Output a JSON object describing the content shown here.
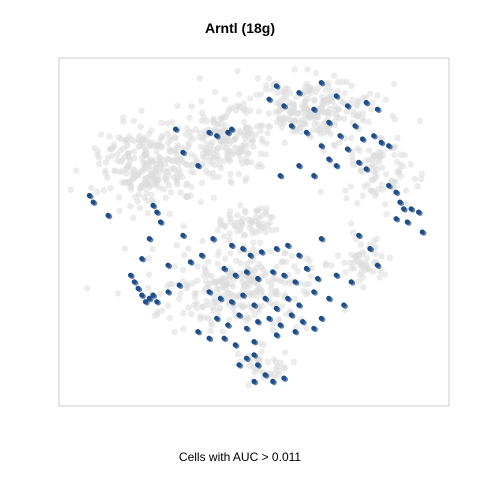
{
  "chart_data": {
    "type": "scatter",
    "title": "Arntl (18g)",
    "caption": "Cells with AUC > 0.011",
    "colors": {
      "background_cells": "#dcdcdc",
      "highlighted_cells": "#1f4e89",
      "frame": "#cccccc"
    },
    "grid": false,
    "legend": "none",
    "series": [
      {
        "name": "",
        "color": "#dcdcdc",
        "note_blob_regions": [
          {
            "cx": 0.22,
            "cy": 0.3,
            "rx": 0.15,
            "ry": 0.14,
            "n": 260
          },
          {
            "cx": 0.42,
            "cy": 0.22,
            "rx": 0.14,
            "ry": 0.12,
            "n": 180
          },
          {
            "cx": 0.66,
            "cy": 0.13,
            "rx": 0.2,
            "ry": 0.1,
            "n": 240
          },
          {
            "cx": 0.82,
            "cy": 0.32,
            "rx": 0.12,
            "ry": 0.12,
            "n": 90
          },
          {
            "cx": 0.48,
            "cy": 0.47,
            "rx": 0.08,
            "ry": 0.05,
            "n": 60
          },
          {
            "cx": 0.46,
            "cy": 0.66,
            "rx": 0.24,
            "ry": 0.14,
            "n": 280
          },
          {
            "cx": 0.8,
            "cy": 0.58,
            "rx": 0.07,
            "ry": 0.08,
            "n": 50
          },
          {
            "cx": 0.52,
            "cy": 0.9,
            "rx": 0.07,
            "ry": 0.06,
            "n": 40
          }
        ]
      },
      {
        "name": "",
        "color": "#1f4e89",
        "points": [
          [
            0.56,
            0.06
          ],
          [
            0.62,
            0.08
          ],
          [
            0.68,
            0.05
          ],
          [
            0.72,
            0.09
          ],
          [
            0.75,
            0.12
          ],
          [
            0.8,
            0.11
          ],
          [
            0.83,
            0.13
          ],
          [
            0.66,
            0.13
          ],
          [
            0.7,
            0.17
          ],
          [
            0.73,
            0.21
          ],
          [
            0.77,
            0.18
          ],
          [
            0.79,
            0.22
          ],
          [
            0.82,
            0.21
          ],
          [
            0.84,
            0.23
          ],
          [
            0.86,
            0.24
          ],
          [
            0.58,
            0.12
          ],
          [
            0.54,
            0.1
          ],
          [
            0.6,
            0.18
          ],
          [
            0.64,
            0.2
          ],
          [
            0.68,
            0.24
          ],
          [
            0.7,
            0.28
          ],
          [
            0.72,
            0.3
          ],
          [
            0.75,
            0.25
          ],
          [
            0.78,
            0.29
          ],
          [
            0.8,
            0.31
          ],
          [
            0.44,
            0.19
          ],
          [
            0.4,
            0.21
          ],
          [
            0.38,
            0.2
          ],
          [
            0.29,
            0.19
          ],
          [
            0.66,
            0.33
          ],
          [
            0.62,
            0.3
          ],
          [
            0.86,
            0.36
          ],
          [
            0.88,
            0.38
          ],
          [
            0.89,
            0.41
          ],
          [
            0.9,
            0.43
          ],
          [
            0.92,
            0.43
          ],
          [
            0.94,
            0.44
          ],
          [
            0.91,
            0.47
          ],
          [
            0.95,
            0.5
          ],
          [
            0.88,
            0.46
          ],
          [
            0.06,
            0.39
          ],
          [
            0.07,
            0.41
          ],
          [
            0.11,
            0.45
          ],
          [
            0.23,
            0.42
          ],
          [
            0.24,
            0.44
          ],
          [
            0.22,
            0.52
          ],
          [
            0.31,
            0.51
          ],
          [
            0.39,
            0.52
          ],
          [
            0.44,
            0.54
          ],
          [
            0.47,
            0.55
          ],
          [
            0.49,
            0.57
          ],
          [
            0.52,
            0.56
          ],
          [
            0.56,
            0.55
          ],
          [
            0.59,
            0.54
          ],
          [
            0.62,
            0.57
          ],
          [
            0.68,
            0.52
          ],
          [
            0.78,
            0.51
          ],
          [
            0.81,
            0.55
          ],
          [
            0.83,
            0.6
          ],
          [
            0.2,
            0.58
          ],
          [
            0.27,
            0.6
          ],
          [
            0.33,
            0.59
          ],
          [
            0.36,
            0.57
          ],
          [
            0.42,
            0.61
          ],
          [
            0.45,
            0.63
          ],
          [
            0.48,
            0.62
          ],
          [
            0.51,
            0.64
          ],
          [
            0.55,
            0.62
          ],
          [
            0.58,
            0.63
          ],
          [
            0.61,
            0.65
          ],
          [
            0.64,
            0.61
          ],
          [
            0.67,
            0.64
          ],
          [
            0.72,
            0.63
          ],
          [
            0.76,
            0.65
          ],
          [
            0.17,
            0.63
          ],
          [
            0.18,
            0.65
          ],
          [
            0.19,
            0.67
          ],
          [
            0.2,
            0.69
          ],
          [
            0.21,
            0.71
          ],
          [
            0.22,
            0.7
          ],
          [
            0.23,
            0.69
          ],
          [
            0.24,
            0.71
          ],
          [
            0.27,
            0.68
          ],
          [
            0.3,
            0.66
          ],
          [
            0.38,
            0.68
          ],
          [
            0.41,
            0.7
          ],
          [
            0.44,
            0.71
          ],
          [
            0.47,
            0.69
          ],
          [
            0.5,
            0.72
          ],
          [
            0.53,
            0.7
          ],
          [
            0.56,
            0.73
          ],
          [
            0.59,
            0.7
          ],
          [
            0.62,
            0.72
          ],
          [
            0.66,
            0.68
          ],
          [
            0.7,
            0.7
          ],
          [
            0.74,
            0.72
          ],
          [
            0.4,
            0.76
          ],
          [
            0.43,
            0.78
          ],
          [
            0.46,
            0.75
          ],
          [
            0.48,
            0.79
          ],
          [
            0.51,
            0.77
          ],
          [
            0.54,
            0.76
          ],
          [
            0.57,
            0.78
          ],
          [
            0.6,
            0.75
          ],
          [
            0.63,
            0.77
          ],
          [
            0.66,
            0.79
          ],
          [
            0.68,
            0.76
          ],
          [
            0.35,
            0.8
          ],
          [
            0.38,
            0.82
          ],
          [
            0.42,
            0.82
          ],
          [
            0.45,
            0.84
          ],
          [
            0.5,
            0.83
          ],
          [
            0.56,
            0.81
          ],
          [
            0.61,
            0.8
          ],
          [
            0.48,
            0.88
          ],
          [
            0.5,
            0.87
          ],
          [
            0.51,
            0.9
          ],
          [
            0.53,
            0.93
          ],
          [
            0.55,
            0.95
          ],
          [
            0.58,
            0.94
          ],
          [
            0.5,
            0.95
          ],
          [
            0.46,
            0.9
          ],
          [
            0.57,
            0.33
          ],
          [
            0.35,
            0.3
          ],
          [
            0.43,
            0.2
          ],
          [
            0.31,
            0.26
          ],
          [
            0.25,
            0.47
          ]
        ]
      }
    ]
  }
}
